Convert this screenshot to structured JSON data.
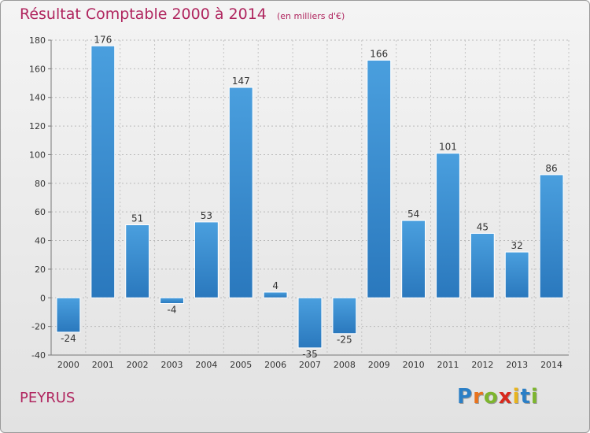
{
  "header": {
    "title": "Résultat Comptable 2000 à 2014",
    "subtitle": "(en milliers d'€)"
  },
  "footer": {
    "commune": "PEYRUS",
    "logo_letters": [
      "P",
      "r",
      "o",
      "x",
      "i",
      "t",
      "i"
    ],
    "logo_colors": [
      "#2b7fc6",
      "#e8731e",
      "#7db52e",
      "#d8291d",
      "#e8b41e",
      "#2b7fc6",
      "#7db52e"
    ]
  },
  "chart_data": {
    "type": "bar",
    "categories": [
      "2000",
      "2001",
      "2002",
      "2003",
      "2004",
      "2005",
      "2006",
      "2007",
      "2008",
      "2009",
      "2010",
      "2011",
      "2012",
      "2013",
      "2014"
    ],
    "values": [
      -24,
      176,
      51,
      -4,
      53,
      147,
      4,
      -35,
      -25,
      166,
      54,
      101,
      45,
      32,
      86
    ],
    "ylim": [
      -40,
      180
    ],
    "yticks": [
      -40,
      -20,
      0,
      20,
      40,
      60,
      80,
      100,
      120,
      140,
      160,
      180
    ],
    "grid": true,
    "bar_color": "#4a9fde",
    "bar_color_dark": "#2a78bd"
  }
}
